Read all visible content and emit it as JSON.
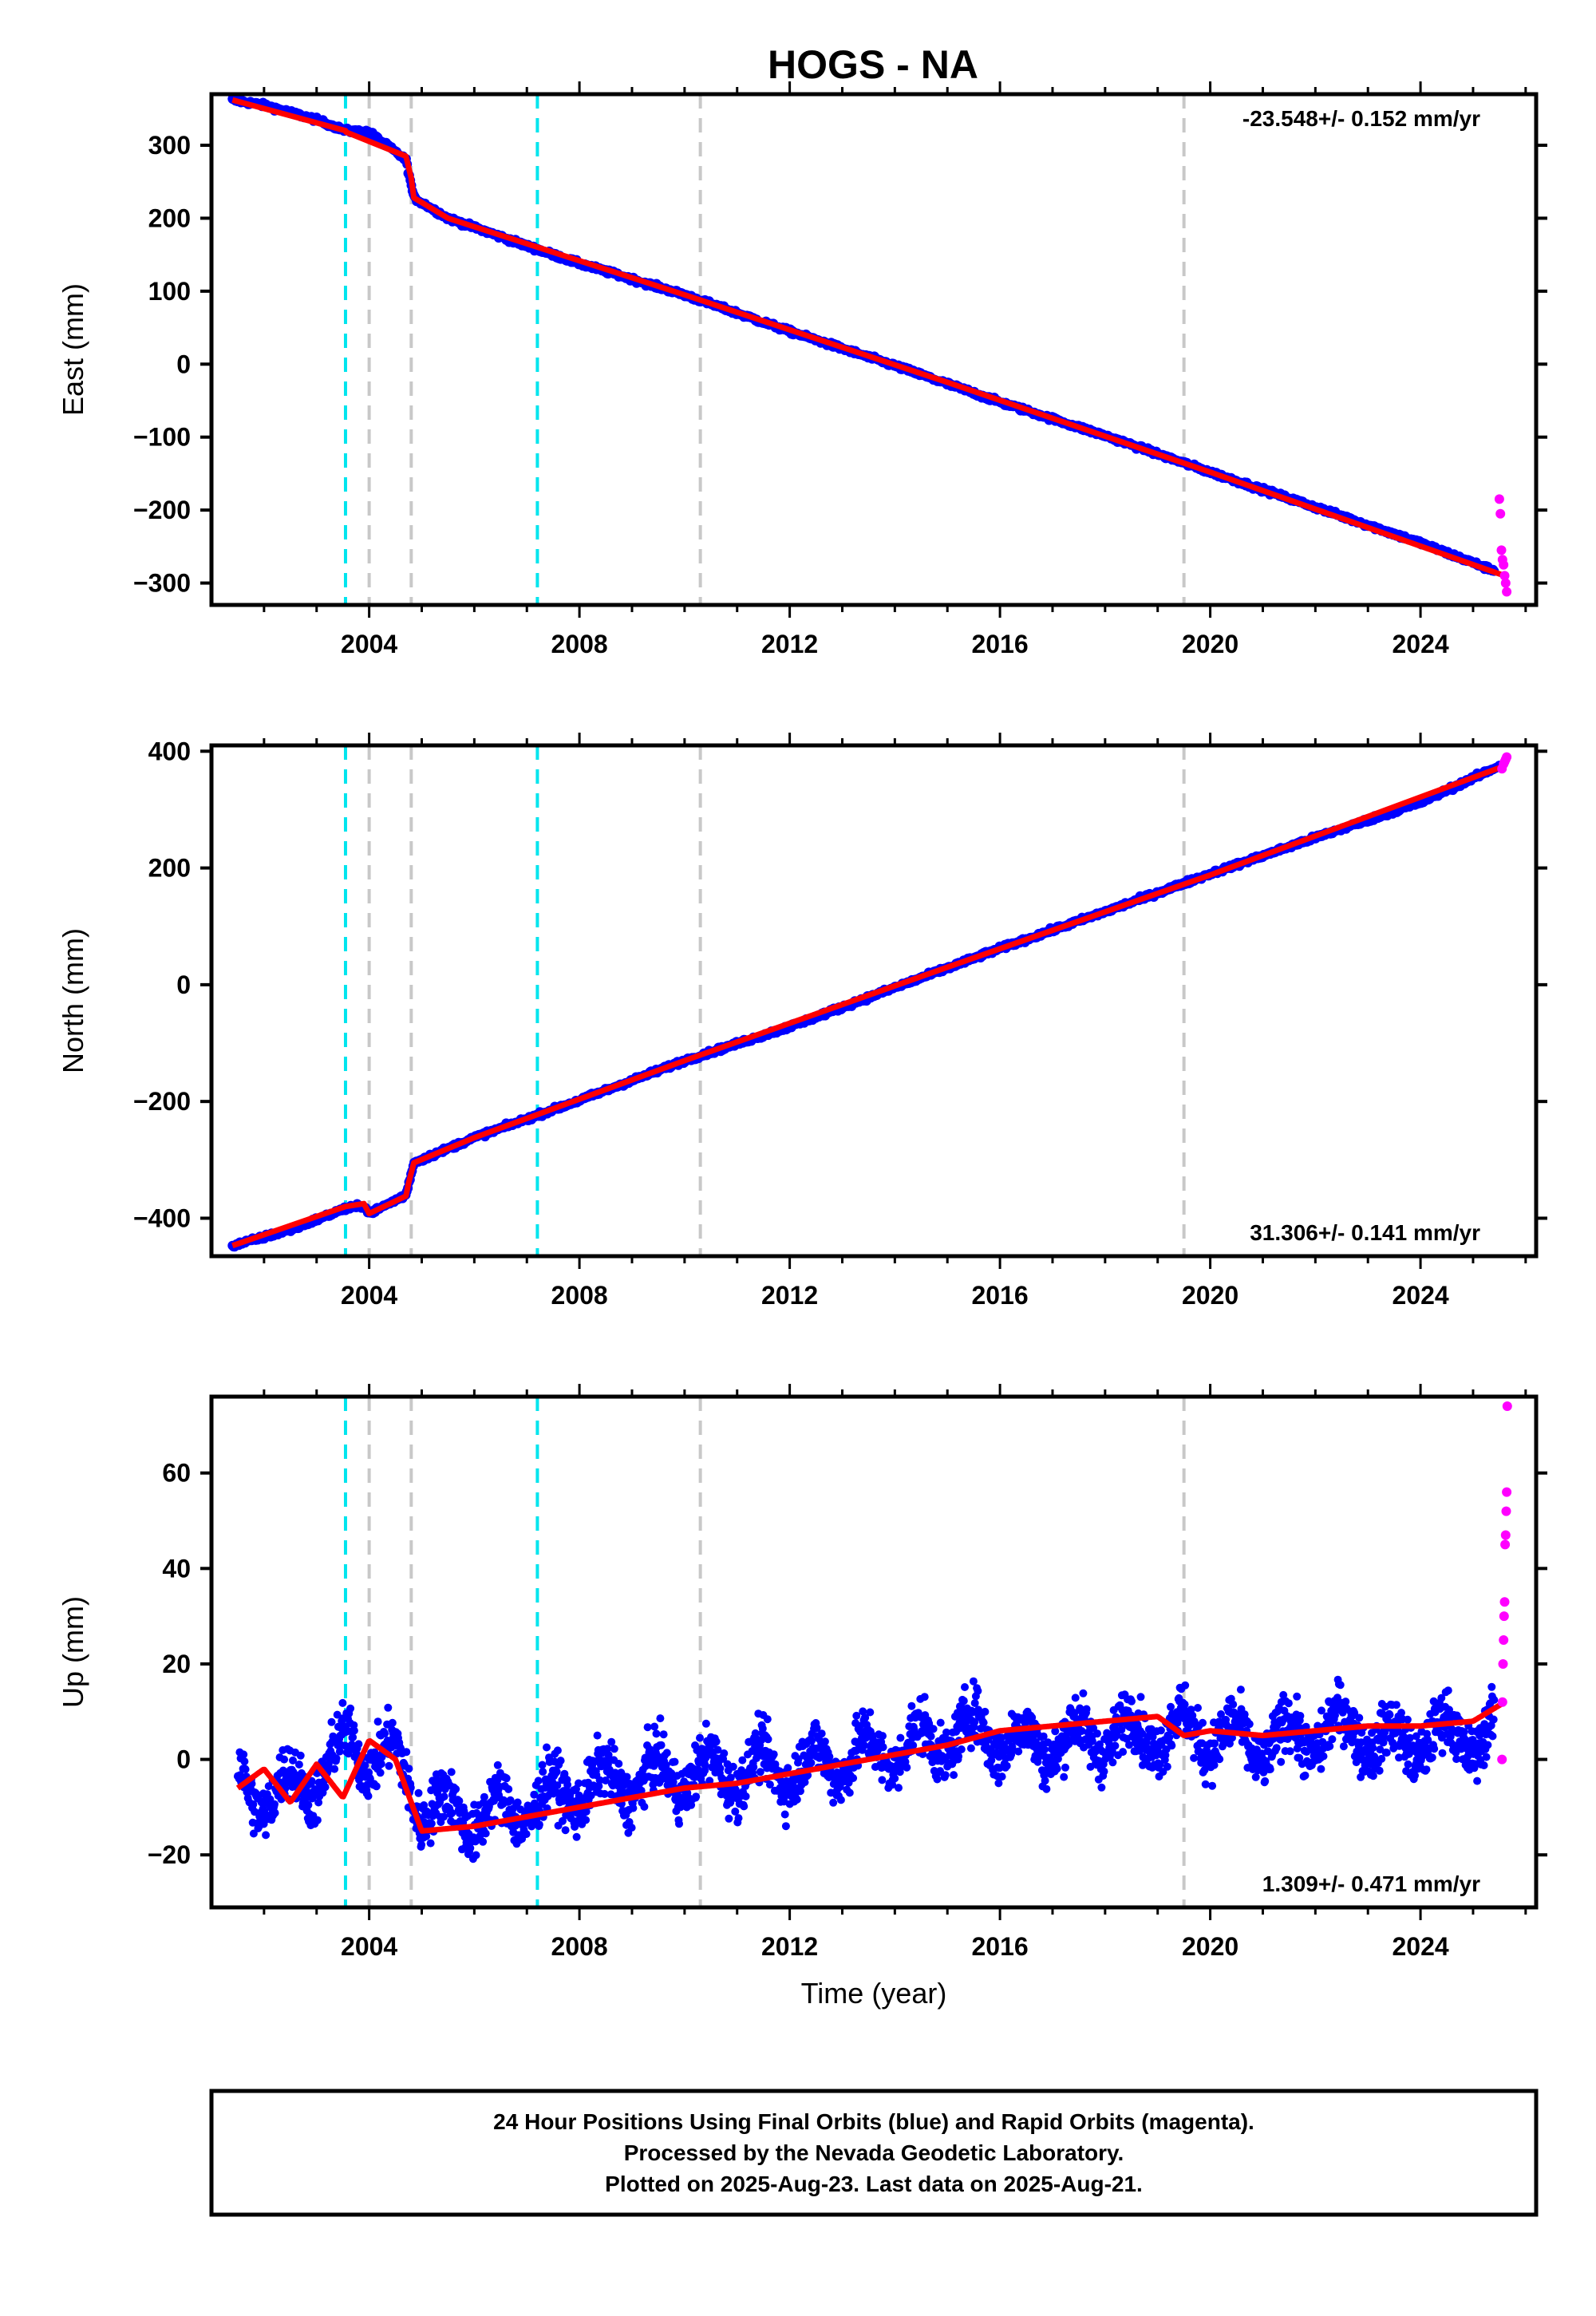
{
  "title": "HOGS - NA",
  "colors": {
    "final_orbits": "#0000ff",
    "rapid_orbits": "#ff00ff",
    "model": "#ff0000",
    "equipment_change": "#c8c8c8",
    "earthquake": "#00e5ee"
  },
  "caption": {
    "line1": "24 Hour Positions Using Final Orbits (blue) and Rapid Orbits (magenta).",
    "line2": "Processed by the Nevada Geodetic Laboratory.",
    "line3": "Plotted on 2025-Aug-23. Last data on 2025-Aug-21."
  },
  "chart_data": [
    {
      "type": "scatter",
      "panel": "east",
      "ylabel": "East (mm)",
      "xlabel": "",
      "xlim": [
        2001.0,
        2026.2
      ],
      "ylim": [
        -330,
        370
      ],
      "xticks": [
        2004,
        2008,
        2012,
        2016,
        2020,
        2024
      ],
      "xtick_labels": [
        "2004",
        "2008",
        "2012",
        "2016",
        "2020",
        "2024"
      ],
      "yticks": [
        -300,
        -200,
        -100,
        0,
        100,
        200,
        300
      ],
      "ytick_labels": [
        "−300",
        "−200",
        "−100",
        "0",
        "100",
        "200",
        "300"
      ],
      "rate": "-23.548+/- 0.152 mm/yr",
      "rate_position": "top-right",
      "gray_dashed_lines_x": [
        2004.0,
        2004.8,
        2010.3,
        2019.5
      ],
      "cyan_dashed_lines_x": [
        2003.55,
        2007.2
      ],
      "series": [
        {
          "role": "final_orbits",
          "marker": "dots",
          "x": [
            2001.4,
            2002.0,
            2003.0,
            2003.55,
            2004.0,
            2004.7,
            2004.85,
            2005.5,
            2007.0,
            2008.0,
            2010.0,
            2012.0,
            2014.0,
            2016.0,
            2018.0,
            2020.0,
            2022.0,
            2024.0,
            2025.4
          ],
          "y": [
            362,
            355,
            335,
            320,
            318,
            280,
            228,
            200,
            162,
            138,
            95,
            45,
            -2,
            -52,
            -98,
            -148,
            -196,
            -245,
            -283
          ]
        },
        {
          "role": "rapid_orbits",
          "marker": "dots",
          "x": [
            2025.5,
            2025.52,
            2025.54,
            2025.56,
            2025.58,
            2025.6,
            2025.62,
            2025.64
          ],
          "y": [
            -185,
            -205,
            -255,
            -268,
            -275,
            -290,
            -300,
            -312
          ]
        },
        {
          "role": "model",
          "marker": "line",
          "x": [
            2001.4,
            2003.55,
            2003.56,
            2004.7,
            2004.8,
            2004.85,
            2005.5,
            2010.0,
            2015.0,
            2020.0,
            2025.6
          ],
          "y": [
            362,
            320,
            318,
            285,
            255,
            228,
            200,
            95,
            -25,
            -148,
            -290
          ]
        }
      ]
    },
    {
      "type": "scatter",
      "panel": "north",
      "ylabel": "North (mm)",
      "xlabel": "",
      "xlim": [
        2001.0,
        2026.2
      ],
      "ylim": [
        -465,
        410
      ],
      "xticks": [
        2004,
        2008,
        2012,
        2016,
        2020,
        2024
      ],
      "xtick_labels": [
        "2004",
        "2008",
        "2012",
        "2016",
        "2020",
        "2024"
      ],
      "yticks": [
        -400,
        -200,
        0,
        200,
        400
      ],
      "ytick_labels": [
        "−400",
        "−200",
        "0",
        "200",
        "400"
      ],
      "rate": "31.306+/- 0.141 mm/yr",
      "rate_position": "bottom-right",
      "gray_dashed_lines_x": [
        2004.0,
        2004.8,
        2010.3,
        2019.5
      ],
      "cyan_dashed_lines_x": [
        2003.55,
        2007.2
      ],
      "series": [
        {
          "role": "final_orbits",
          "marker": "dots",
          "x": [
            2001.4,
            2002.5,
            2003.5,
            2003.9,
            2004.0,
            2004.7,
            2004.85,
            2006.0,
            2008.0,
            2010.0,
            2012.0,
            2014.0,
            2016.0,
            2018.0,
            2020.0,
            2022.0,
            2024.0,
            2025.5
          ],
          "y": [
            -447,
            -420,
            -385,
            -378,
            -392,
            -360,
            -305,
            -262,
            -198,
            -130,
            -72,
            -5,
            62,
            125,
            190,
            252,
            312,
            375
          ]
        },
        {
          "role": "rapid_orbits",
          "marker": "dots",
          "x": [
            2025.55,
            2025.58,
            2025.6,
            2025.62,
            2025.64
          ],
          "y": [
            370,
            378,
            382,
            386,
            390
          ]
        },
        {
          "role": "model",
          "marker": "line",
          "x": [
            2001.4,
            2003.55,
            2003.9,
            2004.0,
            2004.7,
            2004.75,
            2004.85,
            2006.0,
            2010.0,
            2015.0,
            2020.0,
            2025.6
          ],
          "y": [
            -447,
            -380,
            -375,
            -392,
            -362,
            -340,
            -305,
            -262,
            -130,
            30,
            188,
            375
          ]
        }
      ]
    },
    {
      "type": "scatter",
      "panel": "up",
      "ylabel": "Up (mm)",
      "xlabel": "Time (year)",
      "xlim": [
        2001.0,
        2026.2
      ],
      "ylim": [
        -31,
        76
      ],
      "xticks": [
        2004,
        2008,
        2012,
        2016,
        2020,
        2024
      ],
      "xtick_labels": [
        "2004",
        "2008",
        "2012",
        "2016",
        "2020",
        "2024"
      ],
      "yticks": [
        -20,
        0,
        20,
        40,
        60
      ],
      "ytick_labels": [
        "−20",
        "0",
        "20",
        "40",
        "60"
      ],
      "rate": "1.309+/- 0.471 mm/yr",
      "rate_position": "bottom-right",
      "gray_dashed_lines_x": [
        2004.0,
        2004.8,
        2010.3,
        2019.5
      ],
      "cyan_dashed_lines_x": [
        2003.55,
        2007.2
      ],
      "series": [
        {
          "role": "final_orbits",
          "marker": "dots",
          "x": [
            2001.5,
            2002.0,
            2003.0,
            2003.6,
            2004.5,
            2005.0,
            2006.0,
            2007.0,
            2008.0,
            2010.0,
            2012.0,
            2014.0,
            2015.6,
            2016.5,
            2018.0,
            2019.5,
            2021.0,
            2022.8,
            2023.2,
            2024.5,
            2025.4
          ],
          "y": [
            -5,
            -8,
            -4,
            3,
            0,
            -10,
            -12,
            -10,
            -6,
            -3,
            -2,
            2,
            6,
            3,
            5,
            6,
            3,
            7,
            3,
            5,
            5
          ]
        },
        {
          "role": "rapid_orbits",
          "marker": "dots",
          "x": [
            2025.55,
            2025.56,
            2025.57,
            2025.58,
            2025.59,
            2025.6,
            2025.61,
            2025.62,
            2025.63,
            2025.64,
            2025.65
          ],
          "y": [
            0,
            12,
            20,
            25,
            30,
            33,
            45,
            47,
            52,
            56,
            74
          ]
        },
        {
          "role": "model",
          "marker": "line",
          "x": [
            2001.5,
            2002.0,
            2002.5,
            2003.0,
            2003.5,
            2004.0,
            2004.5,
            2005.0,
            2006.0,
            2007.0,
            2008.0,
            2009.0,
            2010.0,
            2011.0,
            2012.0,
            2013.0,
            2014.0,
            2015.0,
            2016.0,
            2017.0,
            2018.0,
            2019.0,
            2019.5,
            2020.0,
            2021.0,
            2022.0,
            2023.0,
            2024.0,
            2025.0,
            2025.6
          ],
          "y": [
            -6,
            -2,
            -9,
            -1,
            -8,
            4,
            0,
            -15,
            -14,
            -12,
            -10,
            -8,
            -6,
            -5,
            -3,
            -1,
            1,
            3,
            6,
            7,
            8,
            9,
            5,
            6,
            5,
            6,
            7,
            7,
            8,
            12
          ]
        }
      ]
    }
  ]
}
